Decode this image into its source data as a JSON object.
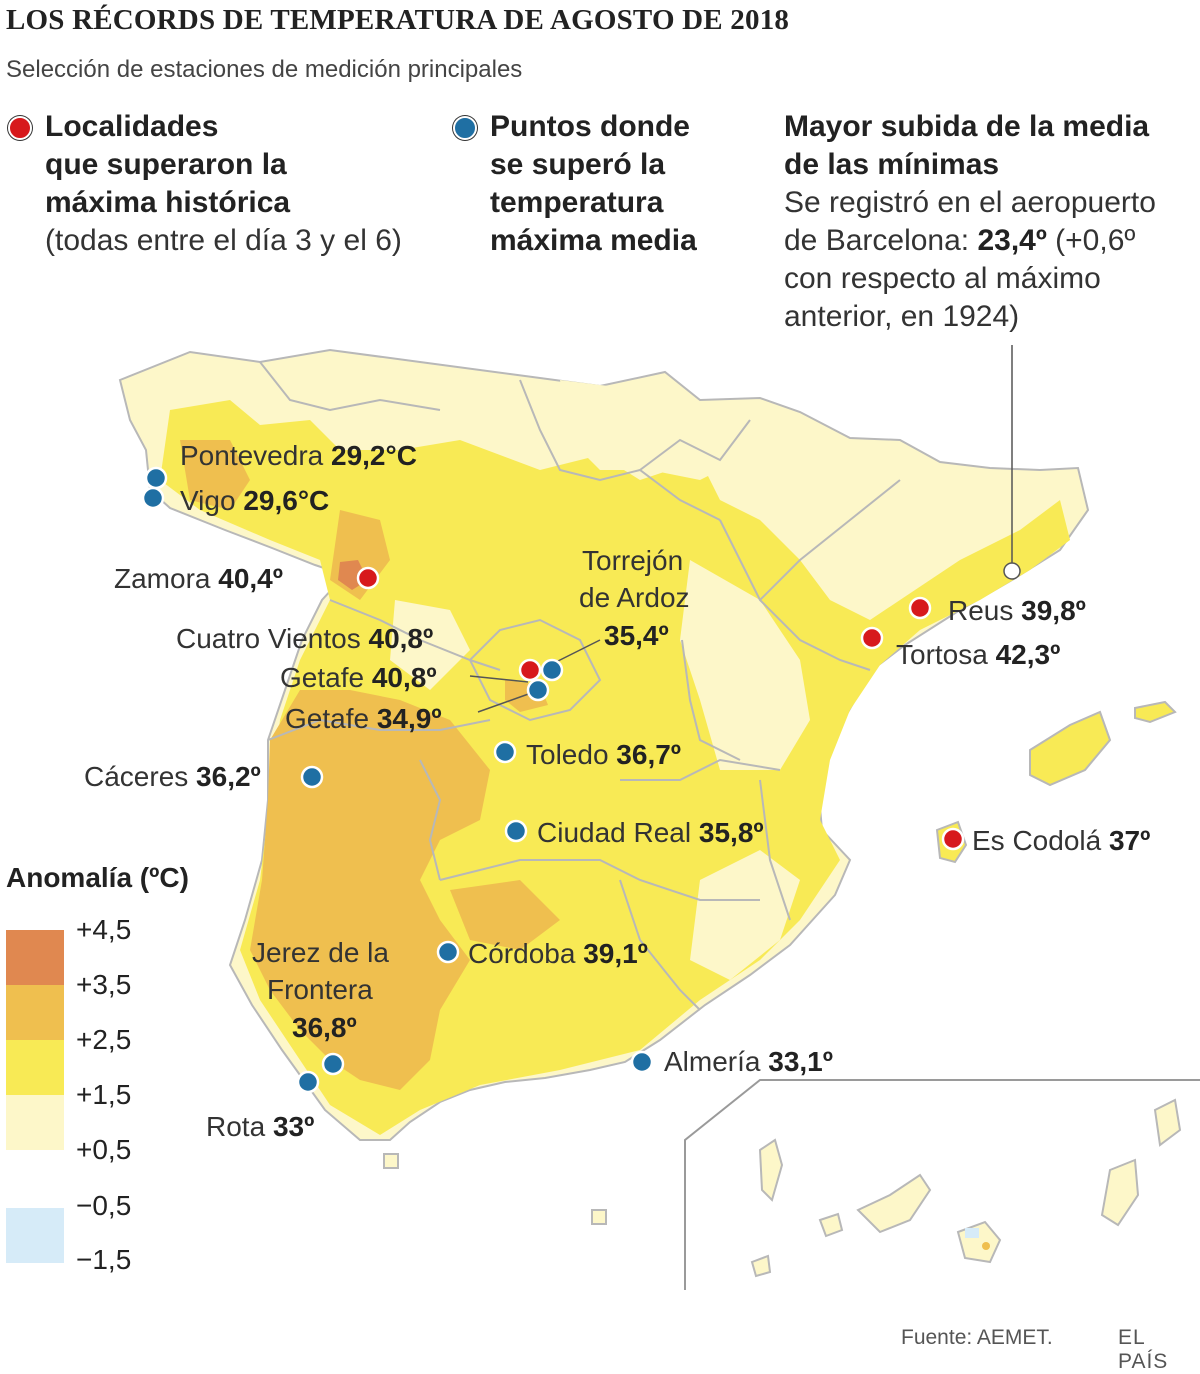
{
  "header": {
    "title": "LOS RÉCORDS DE TEMPERATURA DE AGOSTO DE 2018",
    "subtitle": "Selección de estaciones de medición principales"
  },
  "key": {
    "red": {
      "line1": "Localidades",
      "line2": "que superaron la",
      "line3": "máxima histórica",
      "note": "(todas entre el día 3 y el 6)"
    },
    "blue": {
      "line1": "Puntos donde",
      "line2": "se superó la",
      "line3": "temperatura",
      "line4": "máxima media"
    },
    "rise": {
      "line1": "Mayor subida de la media",
      "line2": "de las mínimas",
      "text1": "Se registró en el aeropuerto",
      "text2a": "de Barcelona: ",
      "text2b": "23,4º",
      "text2c": " (+0,6º",
      "text3": "con respecto al máximo",
      "text4": "anterior, en 1924)"
    }
  },
  "stations": [
    {
      "name": "Pontevedra",
      "value": "29,2°C",
      "type": "blue"
    },
    {
      "name": "Vigo",
      "value": "29,6°C",
      "type": "blue"
    },
    {
      "name": "Zamora",
      "value": "40,4º",
      "type": "red"
    },
    {
      "name": "Torrejón",
      "name2": "de Ardoz",
      "value": "35,4º",
      "type": "blue"
    },
    {
      "name": "Cuatro Vientos",
      "value": "40,8º",
      "type": "red"
    },
    {
      "name": "Getafe",
      "value": "40,8º",
      "type": "red"
    },
    {
      "name": "Getafe",
      "value": "34,9º",
      "type": "blue"
    },
    {
      "name": "Toledo",
      "value": "36,7º",
      "type": "blue"
    },
    {
      "name": "Cáceres",
      "value": "36,2º",
      "type": "blue"
    },
    {
      "name": "Ciudad Real",
      "value": "35,8º",
      "type": "blue"
    },
    {
      "name": "Córdoba",
      "value": "39,1º",
      "type": "blue"
    },
    {
      "name": "Jerez de la",
      "name2": "Frontera",
      "value": "36,8º",
      "type": "blue"
    },
    {
      "name": "Rota",
      "value": "33º",
      "type": "blue"
    },
    {
      "name": "Almería",
      "value": "33,1º",
      "type": "blue"
    },
    {
      "name": "Reus",
      "value": "39,8º",
      "type": "red"
    },
    {
      "name": "Tortosa",
      "value": "42,3º",
      "type": "red"
    },
    {
      "name": "Es Codolá",
      "value": "37º",
      "type": "red"
    }
  ],
  "scale": {
    "title": "Anomalía (ºC)",
    "labels": [
      "+4,5",
      "+3,5",
      "+2,5",
      "+1,5",
      "+0,5",
      "−0,5",
      "−1,5"
    ],
    "bins": [
      {
        "range": "+3,5 / +4,5",
        "color": "#e08850"
      },
      {
        "range": "+2,5 / +3,5",
        "color": "#efbf4f"
      },
      {
        "range": "+1,5 / +2,5",
        "color": "#f8ea55"
      },
      {
        "range": "+0,5 / +1,5",
        "color": "#fdf7c9"
      },
      {
        "range": "−1,5 / −0,5",
        "color": "#d6ebf8"
      }
    ]
  },
  "colors": {
    "red_marker": "#d7191c",
    "blue_marker": "#1f6fa3"
  },
  "footer": {
    "source": "Fuente: AEMET.",
    "brand": "EL PAÍS"
  }
}
